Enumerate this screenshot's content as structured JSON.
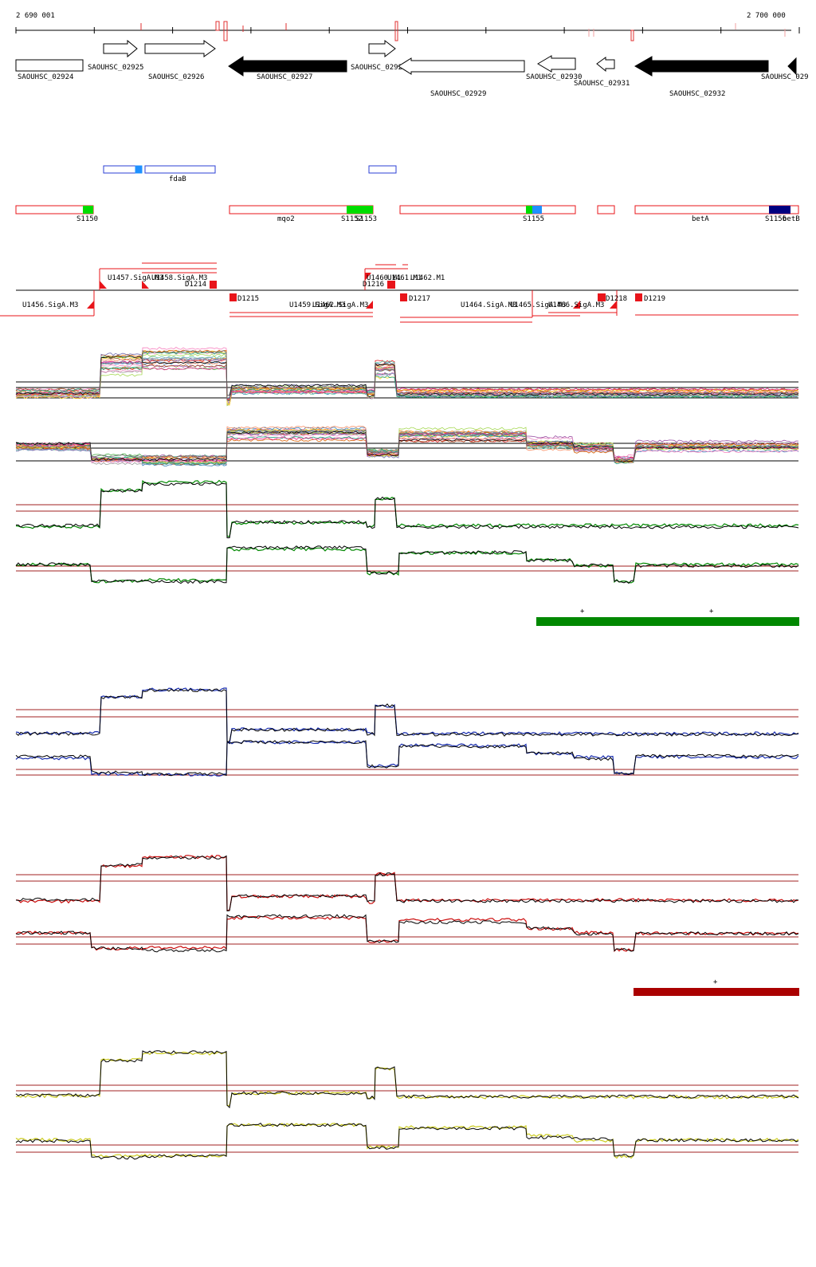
{
  "coordinates": {
    "start": "2 690 001",
    "end": "2 700 000"
  },
  "genes": [
    {
      "label": "SAOUHSC_02924",
      "strand": "+",
      "fill": "white"
    },
    {
      "label": "SAOUHSC_02925",
      "strand": "+",
      "fill": "white"
    },
    {
      "label": "SAOUHSC_02926",
      "strand": "+",
      "fill": "white"
    },
    {
      "label": "SAOUHSC_02927",
      "strand": "-",
      "fill": "black"
    },
    {
      "label": "SAOUHSC_02928",
      "strand": "+",
      "fill": "white"
    },
    {
      "label": "SAOUHSC_02929",
      "strand": "-",
      "fill": "white"
    },
    {
      "label": "SAOUHSC_02930",
      "strand": "-",
      "fill": "white"
    },
    {
      "label": "SAOUHSC_02931",
      "strand": "-",
      "fill": "white"
    },
    {
      "label": "SAOUHSC_02932",
      "strand": "-",
      "fill": "black"
    },
    {
      "label": "SAOUHSC_029",
      "strand": "-",
      "fill": "black"
    }
  ],
  "plus_features": [
    {
      "label": "fdaB"
    }
  ],
  "operons": [
    {
      "label": "S1150"
    },
    {
      "label": "mqo2"
    },
    {
      "label": "S1152"
    },
    {
      "label": "S1153"
    },
    {
      "label": "S1155"
    },
    {
      "label": "betA"
    },
    {
      "label": "S1156"
    },
    {
      "label": "betB"
    }
  ],
  "segments_upper": [
    "U1457.SigA.M3",
    "U1458.SigA.M3",
    "D1214",
    "U1460.M1",
    "U1461.M1",
    "U1462.M1",
    "D1216"
  ],
  "segments_lower": [
    "U1456.SigA.M3",
    "D1215",
    "U1459.SigA.M3",
    "U1462.SigA.M3",
    "D1217",
    "U1464.SigA.M3",
    "U1465.SigA.M3",
    "U1466.SigA.M3",
    "D1218",
    "D1219"
  ],
  "condition_panels": [
    {
      "color": "#008800",
      "highlight_mark": "+"
    },
    {
      "color": "#1a2fb0"
    },
    {
      "color": "#cc1010",
      "highlight_mark": "+"
    },
    {
      "color": "#cccc22"
    }
  ],
  "colors": {
    "red": "#e8141a",
    "green": "#00dd00",
    "blue": "#2b3fd6",
    "light_blue": "#1e90ff",
    "navy": "#000080",
    "dark_red": "#aa0000",
    "grid_red": "#a02020"
  }
}
